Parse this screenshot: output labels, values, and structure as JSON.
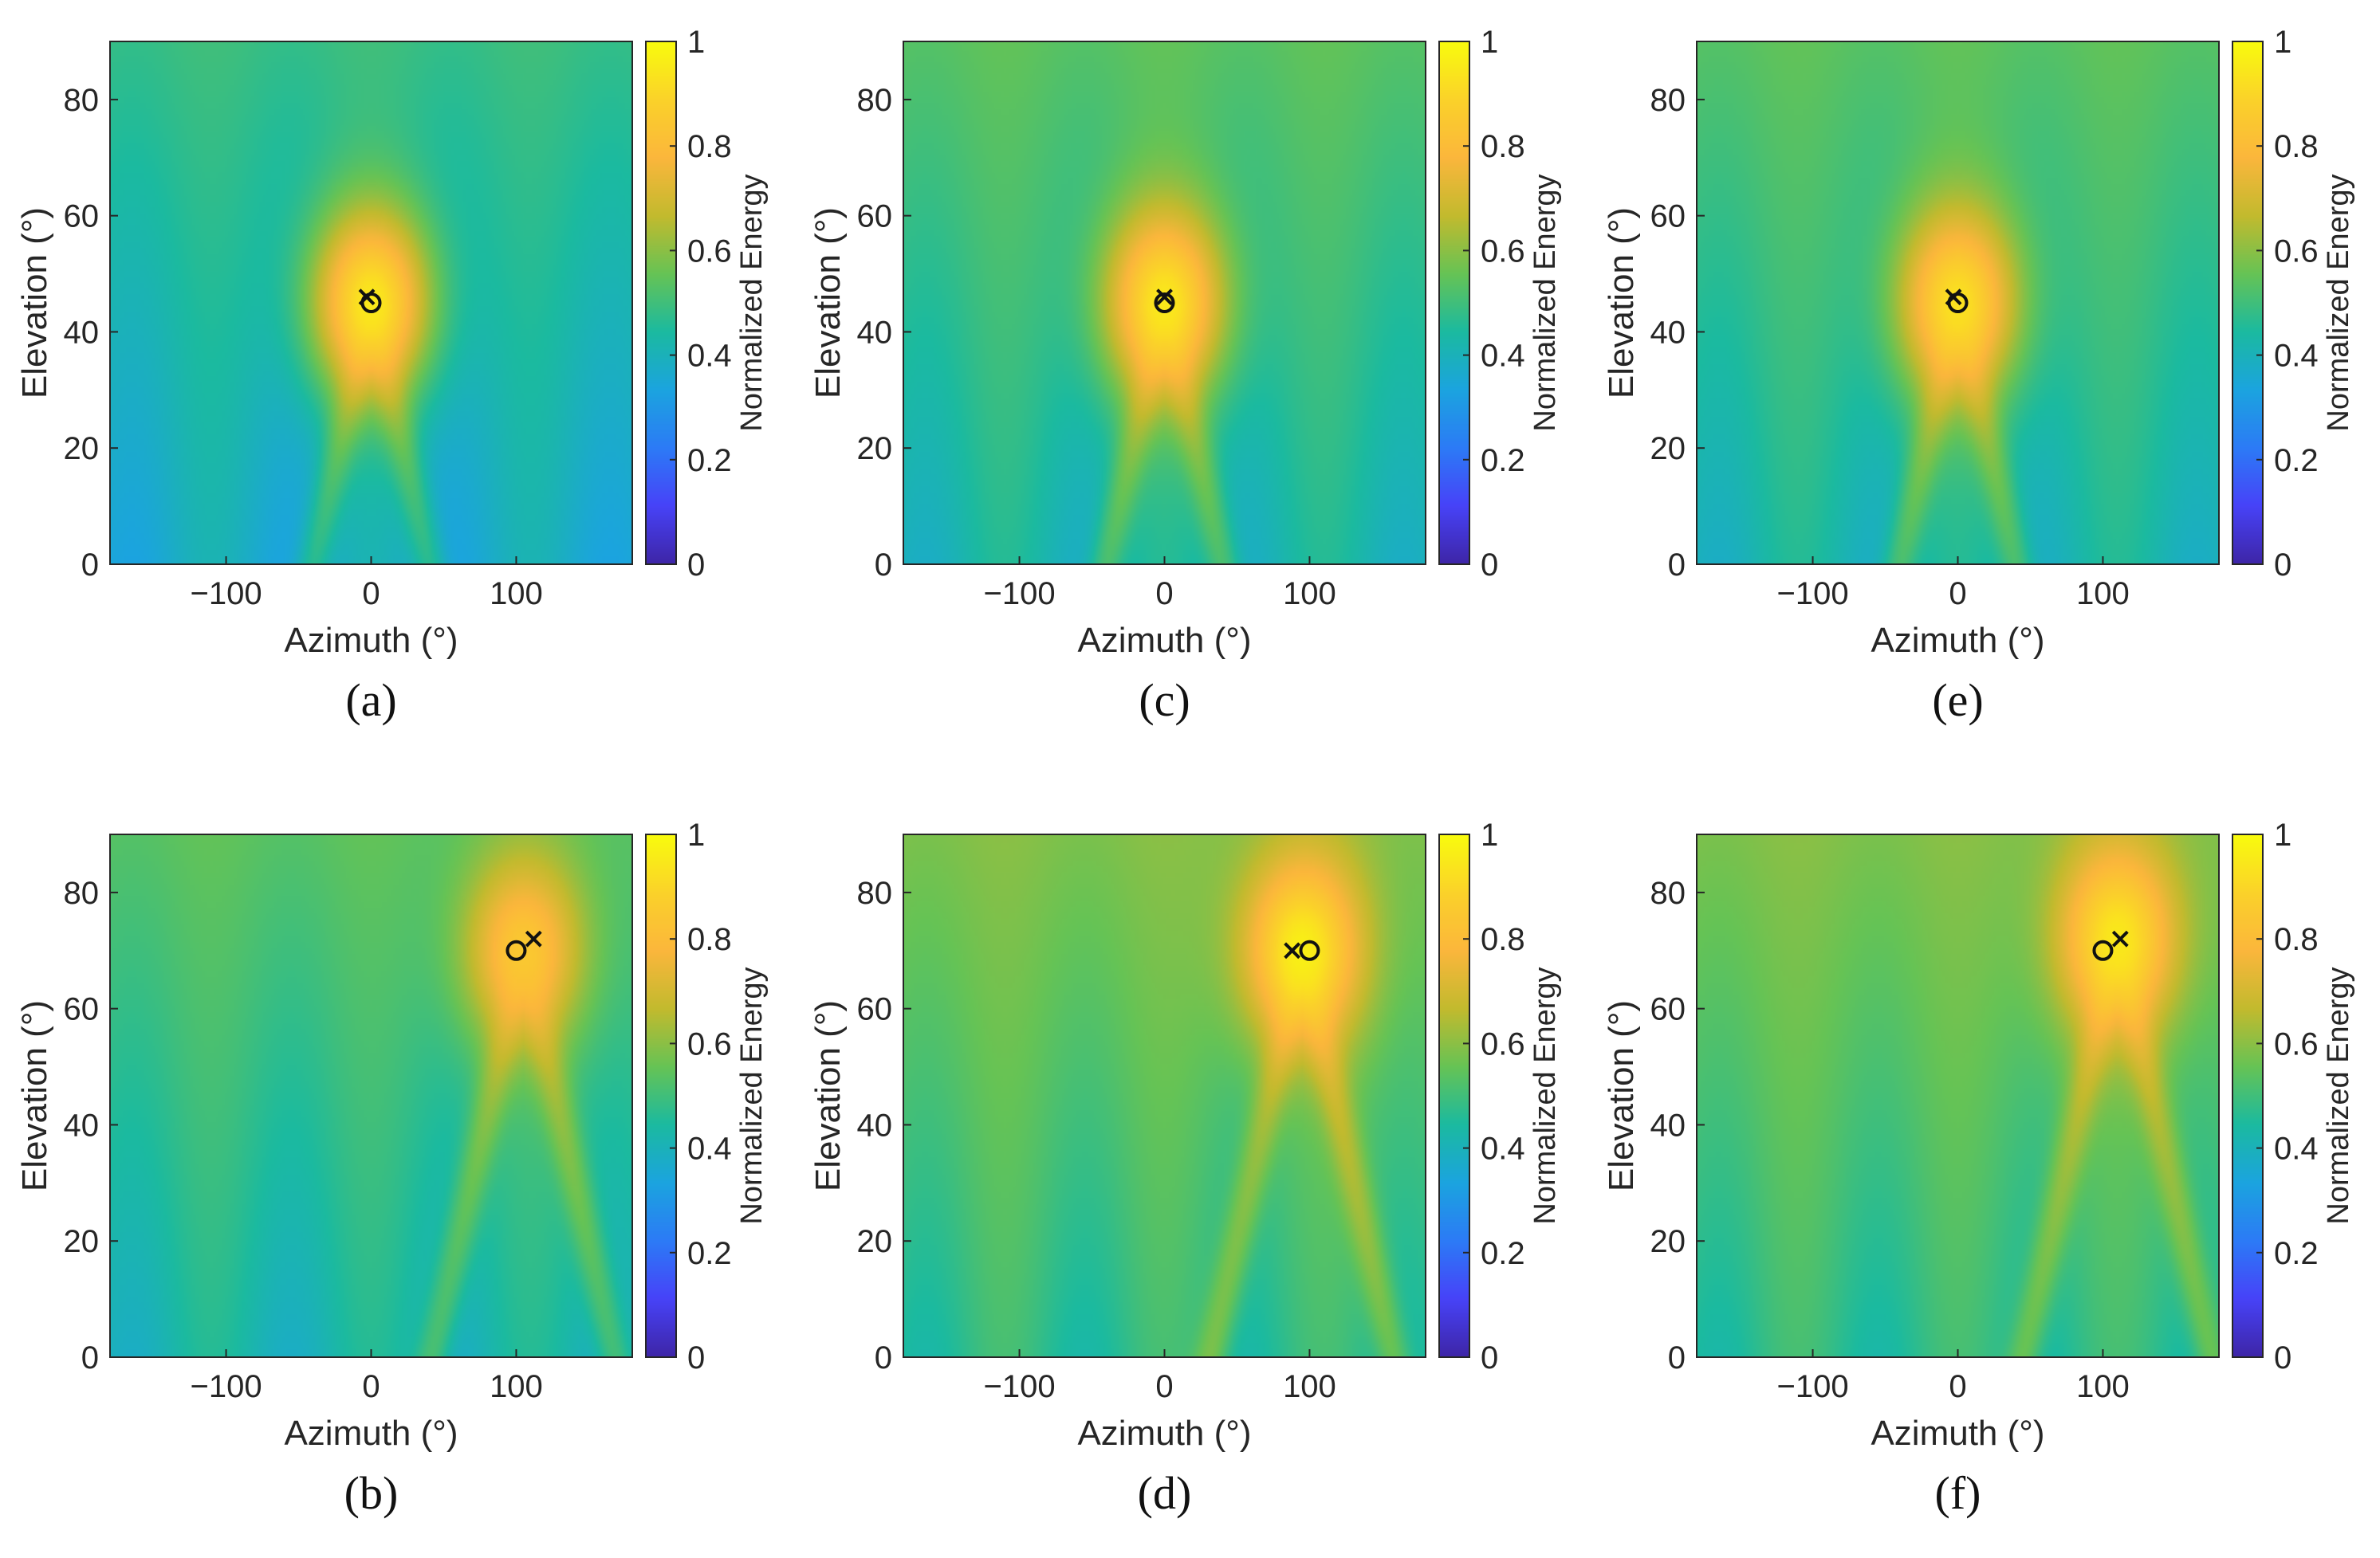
{
  "colors": {
    "marker": "#111111",
    "axis": "#262626"
  },
  "colormap": [
    "#3e26a8",
    "#4743f8",
    "#2c7bf6",
    "#1ba4df",
    "#1bbaa0",
    "#66c355",
    "#c2ba2e",
    "#fbb63c",
    "#fad22a",
    "#f9fb0e"
  ],
  "chart_data": [
    {
      "id": "a",
      "type": "heatmap",
      "caption": "(a)",
      "xlabel": "Azimuth (°)",
      "ylabel": "Elevation (°)",
      "xlim": [
        -180,
        180
      ],
      "ylim": [
        0,
        90
      ],
      "xticks": [
        "−100",
        "0",
        "100"
      ],
      "xtick_values": [
        -100,
        0,
        100
      ],
      "yticks": [
        "0",
        "20",
        "40",
        "60",
        "80"
      ],
      "ytick_values": [
        0,
        20,
        40,
        60,
        80
      ],
      "colorbar": {
        "label": "Normalized Energy",
        "ticks": [
          "0",
          "0.2",
          "0.4",
          "0.6",
          "0.8",
          "1"
        ],
        "range": [
          0,
          1
        ]
      },
      "peak": {
        "azimuth": 0,
        "elevation": 45,
        "max_value": 0.95
      },
      "background": {
        "min_value": 0.33,
        "mean_value": 0.45
      },
      "true_source": {
        "marker": "x",
        "azimuth": -3,
        "elevation": 46
      },
      "estimate": {
        "marker": "o",
        "azimuth": 0,
        "elevation": 45
      }
    },
    {
      "id": "b",
      "type": "heatmap",
      "caption": "(b)",
      "xlabel": "Azimuth (°)",
      "ylabel": "Elevation (°)",
      "xlim": [
        -180,
        180
      ],
      "ylim": [
        0,
        90
      ],
      "xticks": [
        "−100",
        "0",
        "100"
      ],
      "xtick_values": [
        -100,
        0,
        100
      ],
      "yticks": [
        "0",
        "20",
        "40",
        "60",
        "80"
      ],
      "ytick_values": [
        0,
        20,
        40,
        60,
        80
      ],
      "colorbar": {
        "label": "Normalized Energy",
        "ticks": [
          "0",
          "0.2",
          "0.4",
          "0.6",
          "0.8",
          "1"
        ],
        "range": [
          0,
          1
        ]
      },
      "peak": {
        "azimuth": 105,
        "elevation": 70,
        "max_value": 0.85
      },
      "background": {
        "min_value": 0.33,
        "mean_value": 0.5
      },
      "true_source": {
        "marker": "x",
        "azimuth": 112,
        "elevation": 72
      },
      "estimate": {
        "marker": "o",
        "azimuth": 100,
        "elevation": 70
      }
    },
    {
      "id": "c",
      "type": "heatmap",
      "caption": "(c)",
      "xlabel": "Azimuth (°)",
      "ylabel": "Elevation (°)",
      "xlim": [
        -180,
        180
      ],
      "ylim": [
        0,
        90
      ],
      "xticks": [
        "−100",
        "0",
        "100"
      ],
      "xtick_values": [
        -100,
        0,
        100
      ],
      "yticks": [
        "0",
        "20",
        "40",
        "60",
        "80"
      ],
      "ytick_values": [
        0,
        20,
        40,
        60,
        80
      ],
      "colorbar": {
        "label": "Normalized Energy",
        "ticks": [
          "0",
          "0.2",
          "0.4",
          "0.6",
          "0.8",
          "1"
        ],
        "range": [
          0,
          1
        ]
      },
      "peak": {
        "azimuth": 0,
        "elevation": 45,
        "max_value": 0.95
      },
      "background": {
        "min_value": 0.35,
        "mean_value": 0.5
      },
      "true_source": {
        "marker": "x",
        "azimuth": 0,
        "elevation": 46
      },
      "estimate": {
        "marker": "o",
        "azimuth": 0,
        "elevation": 45
      }
    },
    {
      "id": "d",
      "type": "heatmap",
      "caption": "(d)",
      "xlabel": "Azimuth (°)",
      "ylabel": "Elevation (°)",
      "xlim": [
        -180,
        180
      ],
      "ylim": [
        0,
        90
      ],
      "xticks": [
        "−100",
        "0",
        "100"
      ],
      "xtick_values": [
        -100,
        0,
        100
      ],
      "yticks": [
        "0",
        "20",
        "40",
        "60",
        "80"
      ],
      "ytick_values": [
        0,
        20,
        40,
        60,
        80
      ],
      "colorbar": {
        "label": "Normalized Energy",
        "ticks": [
          "0",
          "0.2",
          "0.4",
          "0.6",
          "0.8",
          "1"
        ],
        "range": [
          0,
          1
        ]
      },
      "peak": {
        "azimuth": 95,
        "elevation": 70,
        "max_value": 0.97
      },
      "background": {
        "min_value": 0.38,
        "mean_value": 0.55
      },
      "true_source": {
        "marker": "x",
        "azimuth": 88,
        "elevation": 70
      },
      "estimate": {
        "marker": "o",
        "azimuth": 100,
        "elevation": 70
      }
    },
    {
      "id": "e",
      "type": "heatmap",
      "caption": "(e)",
      "xlabel": "Azimuth (°)",
      "ylabel": "Elevation (°)",
      "xlim": [
        -180,
        180
      ],
      "ylim": [
        0,
        90
      ],
      "xticks": [
        "−100",
        "0",
        "100"
      ],
      "xtick_values": [
        -100,
        0,
        100
      ],
      "yticks": [
        "0",
        "20",
        "40",
        "60",
        "80"
      ],
      "ytick_values": [
        0,
        20,
        40,
        60,
        80
      ],
      "colorbar": {
        "label": "Normalized Energy",
        "ticks": [
          "0",
          "0.2",
          "0.4",
          "0.6",
          "0.8",
          "1"
        ],
        "range": [
          0,
          1
        ]
      },
      "peak": {
        "azimuth": 0,
        "elevation": 45,
        "max_value": 0.93
      },
      "background": {
        "min_value": 0.35,
        "mean_value": 0.5
      },
      "true_source": {
        "marker": "x",
        "azimuth": -3,
        "elevation": 46
      },
      "estimate": {
        "marker": "o",
        "azimuth": 0,
        "elevation": 45
      }
    },
    {
      "id": "f",
      "type": "heatmap",
      "caption": "(f)",
      "xlabel": "Azimuth (°)",
      "ylabel": "Elevation (°)",
      "xlim": [
        -180,
        180
      ],
      "ylim": [
        0,
        90
      ],
      "xticks": [
        "−100",
        "0",
        "100"
      ],
      "xtick_values": [
        -100,
        0,
        100
      ],
      "yticks": [
        "0",
        "20",
        "40",
        "60",
        "80"
      ],
      "ytick_values": [
        0,
        20,
        40,
        60,
        80
      ],
      "colorbar": {
        "label": "Normalized Energy",
        "ticks": [
          "0",
          "0.2",
          "0.4",
          "0.6",
          "0.8",
          "1"
        ],
        "range": [
          0,
          1
        ]
      },
      "peak": {
        "azimuth": 110,
        "elevation": 72,
        "max_value": 0.95
      },
      "background": {
        "min_value": 0.38,
        "mean_value": 0.55
      },
      "true_source": {
        "marker": "x",
        "azimuth": 112,
        "elevation": 72
      },
      "estimate": {
        "marker": "o",
        "azimuth": 100,
        "elevation": 70
      }
    }
  ]
}
